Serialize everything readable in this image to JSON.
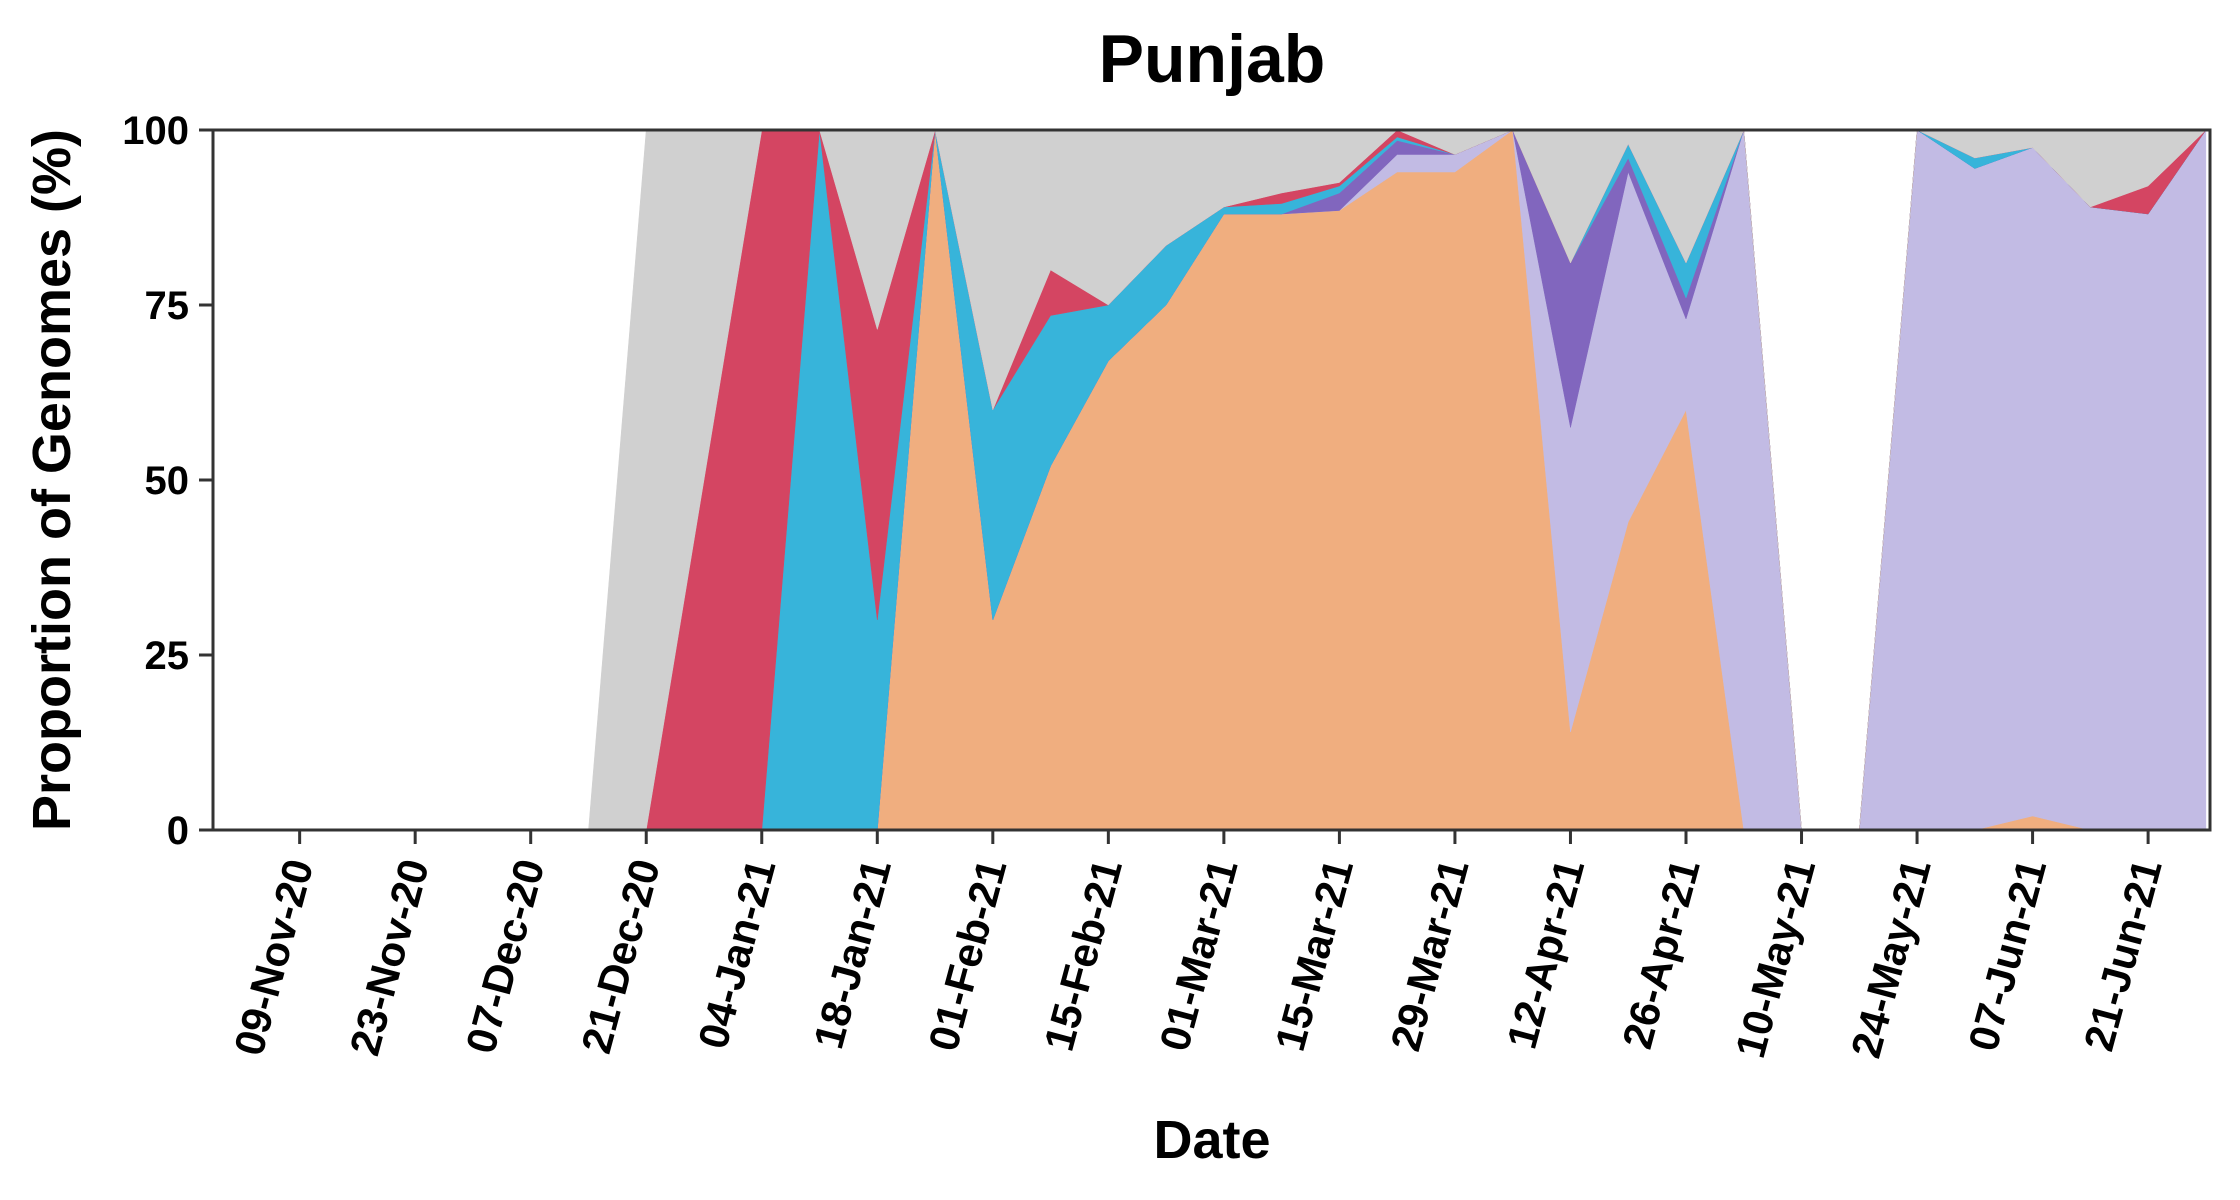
{
  "chart_data": {
    "type": "area",
    "stacked": true,
    "title": "Punjab",
    "xlabel": "Date",
    "ylabel": "Proportion of Genomes (%)",
    "ylim": [
      0,
      100
    ],
    "yticks": [
      0,
      25,
      50,
      75,
      100
    ],
    "xticks": [
      "09-Nov-20",
      "23-Nov-20",
      "07-Dec-20",
      "21-Dec-20",
      "04-Jan-21",
      "18-Jan-21",
      "01-Feb-21",
      "15-Feb-21",
      "01-Mar-21",
      "15-Mar-21",
      "29-Mar-21",
      "12-Apr-21",
      "26-Apr-21",
      "10-May-21",
      "24-May-21",
      "07-Jun-21",
      "21-Jun-21"
    ],
    "grid": false,
    "legend": "none",
    "x": [
      "09-Nov-20",
      "16-Nov-20",
      "23-Nov-20",
      "30-Nov-20",
      "07-Dec-20",
      "14-Dec-20",
      "21-Dec-20",
      "28-Dec-20",
      "04-Jan-21",
      "11-Jan-21",
      "18-Jan-21",
      "25-Jan-21",
      "01-Feb-21",
      "08-Feb-21",
      "15-Feb-21",
      "22-Feb-21",
      "01-Mar-21",
      "08-Mar-21",
      "15-Mar-21",
      "22-Mar-21",
      "29-Mar-21",
      "05-Apr-21",
      "12-Apr-21",
      "19-Apr-21",
      "26-Apr-21",
      "03-May-21",
      "10-May-21",
      "17-May-21",
      "24-May-21",
      "31-May-21",
      "07-Jun-21",
      "14-Jun-21",
      "21-Jun-21",
      "28-Jun-21"
    ],
    "series": [
      {
        "color": "#f0ae7f",
        "values": [
          0,
          0,
          0,
          0,
          0,
          0,
          0,
          0,
          0,
          0,
          0,
          100,
          30,
          52,
          67,
          75,
          88,
          88,
          88.5,
          94,
          94,
          100,
          14,
          44,
          60,
          0,
          0,
          0,
          0,
          0,
          2,
          0,
          0,
          0
        ]
      },
      {
        "color": "#c2bbe4",
        "values": [
          0,
          0,
          0,
          0,
          0,
          0,
          0,
          0,
          0,
          0,
          0,
          0,
          0,
          0,
          0,
          0,
          0,
          0,
          0,
          2.5,
          2.5,
          0,
          43.5,
          50,
          13,
          100,
          0,
          0,
          100,
          94.5,
          95.5,
          89,
          88,
          100
        ]
      },
      {
        "color": "#8166be",
        "values": [
          0,
          0,
          0,
          0,
          0,
          0,
          0,
          0,
          0,
          0,
          0,
          0,
          0,
          0,
          0,
          0,
          0,
          0,
          2.5,
          2,
          0,
          0,
          23.5,
          2,
          3,
          0,
          0,
          0,
          0,
          0,
          0,
          0,
          0,
          0
        ]
      },
      {
        "color": "#37b4da",
        "values": [
          0,
          0,
          0,
          0,
          0,
          0,
          0,
          0,
          0,
          100,
          30,
          0,
          30,
          21.5,
          8,
          8.5,
          1,
          1.5,
          1,
          0.5,
          0,
          0,
          0,
          2,
          5,
          0,
          0,
          0,
          0,
          1.5,
          0,
          0,
          0,
          0
        ]
      },
      {
        "color": "#d44562",
        "values": [
          0,
          0,
          0,
          0,
          0,
          0,
          0,
          50,
          100,
          0,
          41.5,
          0,
          0,
          6.5,
          0,
          0,
          0,
          1.5,
          0.5,
          1,
          0,
          0,
          0,
          0,
          0,
          0,
          0,
          0,
          0,
          0,
          0,
          0,
          4,
          0
        ]
      },
      {
        "color": "#d0d0d0",
        "values": [
          0,
          0,
          0,
          0,
          0,
          0,
          100,
          50,
          0,
          0,
          28.5,
          0,
          40,
          20,
          25,
          16.5,
          11,
          9,
          7.5,
          0,
          3.5,
          0,
          19,
          2,
          19,
          0,
          0,
          0,
          0,
          4,
          2.5,
          11,
          8,
          0
        ]
      }
    ]
  }
}
